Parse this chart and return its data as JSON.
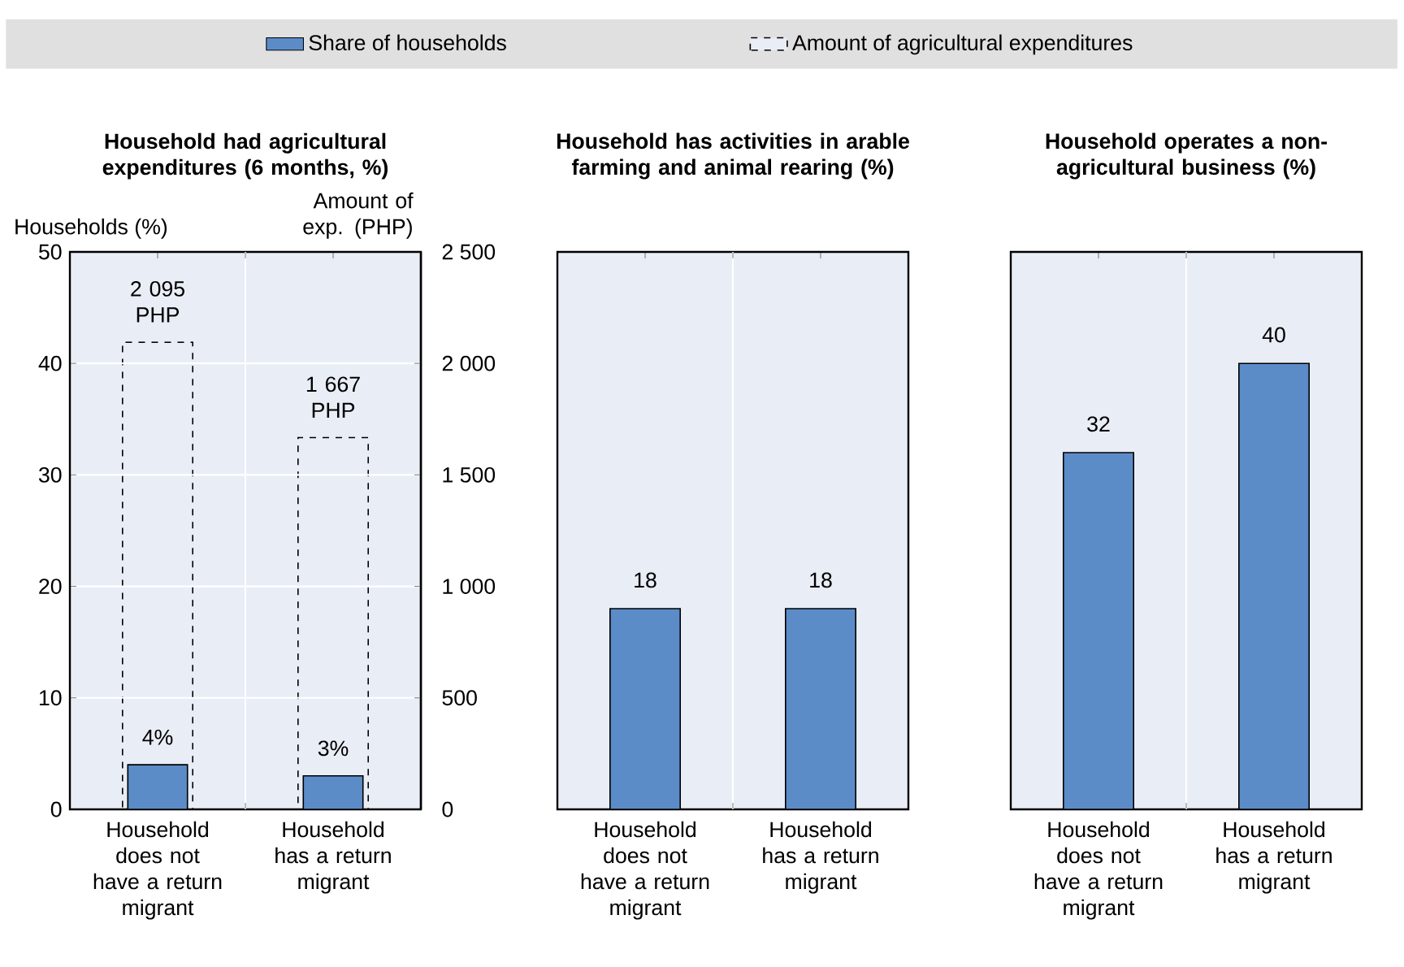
{
  "chart_data": [
    {
      "type": "bar",
      "title": "Household had agricultural expenditures  (6 months, %)",
      "categories": [
        "Household does not have a return migrant",
        "Household has a return migrant"
      ],
      "ylabel": "Households (%)",
      "y2label": "Amount of exp. (PHP)",
      "ylim": [
        0,
        50
      ],
      "yticks": [
        0,
        10,
        20,
        30,
        40,
        50
      ],
      "y2lim": [
        0,
        2500
      ],
      "y2ticks": [
        0,
        500,
        {
          "value": 1000,
          "label": "1 000"
        },
        {
          "value": 1500,
          "label": "1 500"
        },
        {
          "value": 2000,
          "label": "2 000"
        },
        {
          "value": 2500,
          "label": "2 500"
        }
      ],
      "grid": "y",
      "legend": "top",
      "series": [
        {
          "name": "Share of households",
          "color": "#5b8cc8",
          "values": [
            4,
            3
          ],
          "value_labels": [
            "4%",
            "3%"
          ]
        },
        {
          "name": "Amount of agricultural expenditures",
          "color": "#000000",
          "values": [
            2095,
            1667
          ],
          "value_labels": [
            "2 095 PHP",
            "1 667 PHP"
          ],
          "axis": "y2",
          "line_style": "dashed"
        }
      ]
    },
    {
      "type": "bar",
      "title": "Household has activities in arable farming and animal rearing (%)",
      "categories": [
        "Household does not have a return migrant",
        "Household has a return migrant"
      ],
      "values": [
        18,
        18
      ],
      "color": "#5b8cc8",
      "data_labels": true,
      "ylim": [
        0,
        50
      ],
      "tick_labels": "x"
    },
    {
      "type": "bar",
      "title": "Household operates a non-agricultural business (%)",
      "categories": [
        "Household does not have a return migrant",
        "Household has a return migrant"
      ],
      "values": [
        32,
        40
      ],
      "color": "#5b8cc8",
      "data_labels": true,
      "ylim": [
        0,
        50
      ],
      "tick_labels": "x"
    }
  ]
}
